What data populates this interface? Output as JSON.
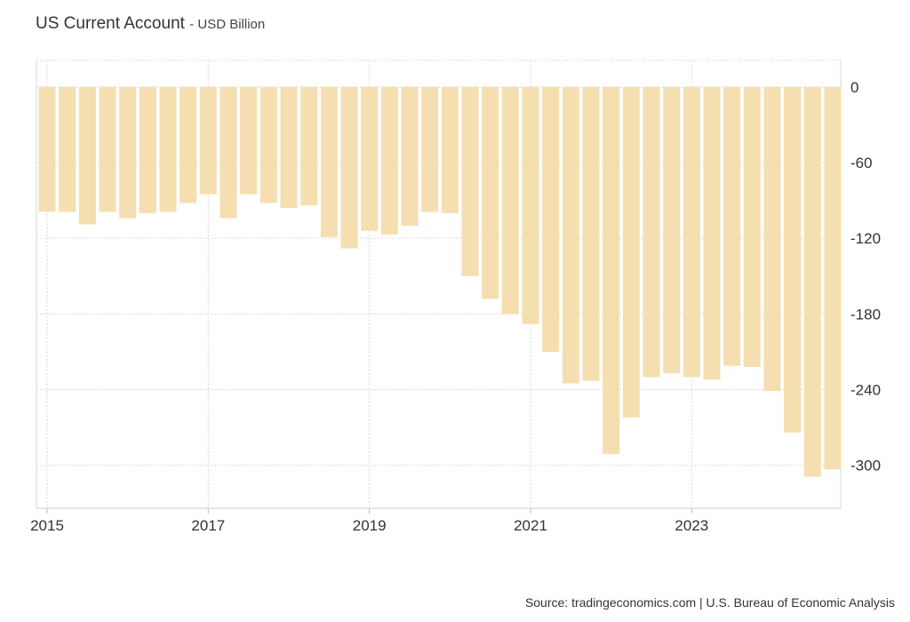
{
  "header": {
    "title": "US Current Account",
    "subtitle": "- USD Billion"
  },
  "footer": {
    "source": "Source: tradingeconomics.com | U.S. Bureau of Economic Analysis"
  },
  "colors": {
    "bar": "#f5deb0",
    "grid": "#d9d9d9",
    "text": "#333333"
  },
  "chart_data": {
    "type": "bar",
    "title": "US Current Account",
    "subtitle": "USD Billion",
    "categories": [
      "2015 Q1",
      "2015 Q2",
      "2015 Q3",
      "2015 Q4",
      "2016 Q1",
      "2016 Q2",
      "2016 Q3",
      "2016 Q4",
      "2017 Q1",
      "2017 Q2",
      "2017 Q3",
      "2017 Q4",
      "2018 Q1",
      "2018 Q2",
      "2018 Q3",
      "2018 Q4",
      "2019 Q1",
      "2019 Q2",
      "2019 Q3",
      "2019 Q4",
      "2020 Q1",
      "2020 Q2",
      "2020 Q3",
      "2020 Q4",
      "2021 Q1",
      "2021 Q2",
      "2021 Q3",
      "2021 Q4",
      "2022 Q1",
      "2022 Q2",
      "2022 Q3",
      "2022 Q4",
      "2023 Q1",
      "2023 Q2",
      "2023 Q3",
      "2023 Q4",
      "2024 Q1",
      "2024 Q2",
      "2024 Q3",
      "2024 Q4"
    ],
    "values": [
      -99,
      -99,
      -109,
      -99,
      -104,
      -100,
      -99,
      -92,
      -85,
      -104,
      -85,
      -92,
      -96,
      -94,
      -119,
      -128,
      -114,
      -117,
      -110,
      -99,
      -100,
      -150,
      -168,
      -180,
      -188,
      -210,
      -235,
      -233,
      -291,
      -262,
      -230,
      -227,
      -230,
      -232,
      -221,
      -222,
      -241,
      -274,
      -309,
      -303
    ],
    "x_tick_labels": [
      "2015",
      "2017",
      "2019",
      "2021",
      "2023"
    ],
    "y_ticks": [
      0,
      -60,
      -120,
      -180,
      -240,
      -300
    ],
    "y_tick_labels": [
      "0",
      "-60",
      "-120",
      "-180",
      "-240",
      "-300"
    ],
    "ylim": [
      -334,
      21
    ],
    "grid": true,
    "y_axis_side": "right"
  }
}
